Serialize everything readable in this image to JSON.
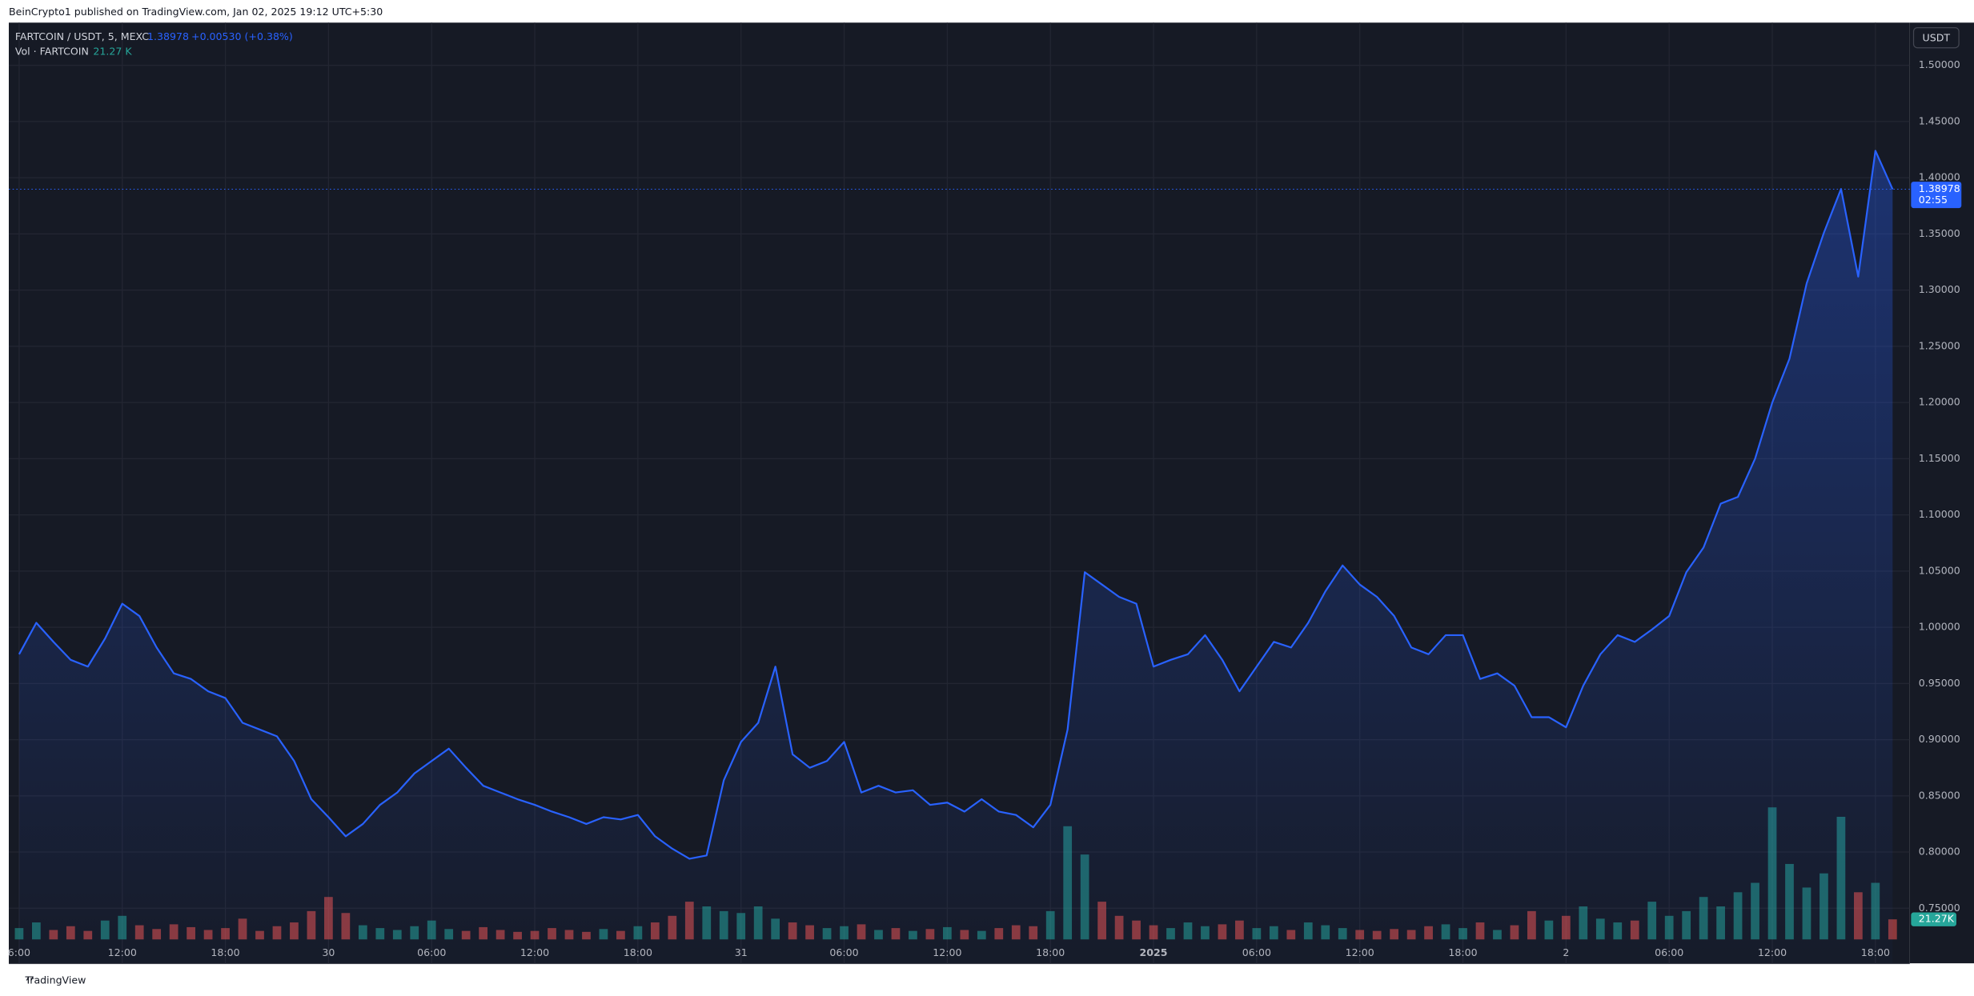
{
  "header": {
    "publisher": "BeinCrypto1 published on TradingView.com, Jan 02, 2025 19:12 UTC+5:30"
  },
  "footer": {
    "brand": "TradingView"
  },
  "chart_data": {
    "type": "line",
    "legend": {
      "symbol": "FARTCOIN / USDT, 5, MEXC",
      "last": "1.38978",
      "change": "+0.00530 (+0.38%)",
      "volume_name": "Vol · FARTCOIN",
      "volume_last": "21.27 K"
    },
    "y_axis_label": "USDT",
    "price_badge": {
      "value": "1.38978",
      "countdown": "02:55"
    },
    "xlim": [
      5.4,
      116
    ],
    "xticks": [
      {
        "value": 6,
        "label": "6:00"
      },
      {
        "value": 12,
        "label": "12:00"
      },
      {
        "value": 18,
        "label": "18:00"
      },
      {
        "value": 24,
        "label": "30"
      },
      {
        "value": 30,
        "label": "06:00"
      },
      {
        "value": 36,
        "label": "12:00"
      },
      {
        "value": 42,
        "label": "18:00"
      },
      {
        "value": 48,
        "label": "31"
      },
      {
        "value": 54,
        "label": "06:00"
      },
      {
        "value": 60,
        "label": "12:00"
      },
      {
        "value": 66,
        "label": "18:00"
      },
      {
        "value": 72,
        "label": "2025"
      },
      {
        "value": 78,
        "label": "06:00"
      },
      {
        "value": 84,
        "label": "12:00"
      },
      {
        "value": 90,
        "label": "18:00"
      },
      {
        "value": 96,
        "label": "2"
      },
      {
        "value": 102,
        "label": "06:00"
      },
      {
        "value": 108,
        "label": "12:00"
      },
      {
        "value": 114,
        "label": "18:00"
      }
    ],
    "ylim": [
      0.701,
      1.538
    ],
    "yticks": [
      {
        "value": 0.75,
        "label": "0.75000"
      },
      {
        "value": 0.8,
        "label": "0.80000"
      },
      {
        "value": 0.85,
        "label": "0.85000"
      },
      {
        "value": 0.9,
        "label": "0.90000"
      },
      {
        "value": 0.95,
        "label": "0.95000"
      },
      {
        "value": 1.0,
        "label": "1.00000"
      },
      {
        "value": 1.05,
        "label": "1.05000"
      },
      {
        "value": 1.1,
        "label": "1.10000"
      },
      {
        "value": 1.15,
        "label": "1.15000"
      },
      {
        "value": 1.2,
        "label": "1.20000"
      },
      {
        "value": 1.25,
        "label": "1.25000"
      },
      {
        "value": 1.3,
        "label": "1.30000"
      },
      {
        "value": 1.35,
        "label": "1.35000"
      },
      {
        "value": 1.4,
        "label": "1.40000"
      },
      {
        "value": 1.45,
        "label": "1.45000"
      },
      {
        "value": 1.5,
        "label": "1.50000"
      }
    ],
    "grid": true,
    "x": [
      6,
      7,
      8,
      9,
      10,
      11,
      12,
      13,
      14,
      15,
      16,
      17,
      18,
      19,
      20,
      21,
      22,
      23,
      24,
      25,
      26,
      27,
      28,
      29,
      30,
      31,
      32,
      33,
      34,
      35,
      36,
      37,
      38,
      39,
      40,
      41,
      42,
      43,
      44,
      45,
      46,
      47,
      48,
      49,
      50,
      51,
      52,
      53,
      54,
      55,
      56,
      57,
      58,
      59,
      60,
      61,
      62,
      63,
      64,
      65,
      66,
      67,
      68,
      69,
      70,
      71,
      72,
      73,
      74,
      75,
      76,
      77,
      78,
      79,
      80,
      81,
      82,
      83,
      84,
      85,
      86,
      87,
      88,
      89,
      90,
      91,
      92,
      93,
      94,
      95,
      96,
      97,
      98,
      99,
      100,
      101,
      102,
      103,
      104,
      105,
      106,
      107,
      108,
      109,
      110,
      111,
      112,
      113,
      114,
      115
    ],
    "series": [
      {
        "name": "FARTCOIN / USDT",
        "color": "#2962ff",
        "values": [
          0.976,
          1.004,
          0.987,
          0.971,
          0.965,
          0.99,
          1.021,
          1.01,
          0.982,
          0.959,
          0.954,
          0.943,
          0.937,
          0.915,
          0.909,
          0.903,
          0.881,
          0.847,
          0.831,
          0.814,
          0.825,
          0.842,
          0.853,
          0.87,
          0.881,
          0.892,
          0.875,
          0.859,
          0.853,
          0.847,
          0.842,
          0.836,
          0.831,
          0.825,
          0.831,
          0.829,
          0.833,
          0.814,
          0.803,
          0.794,
          0.797,
          0.864,
          0.898,
          0.915,
          0.965,
          0.887,
          0.875,
          0.881,
          0.898,
          0.853,
          0.859,
          0.853,
          0.855,
          0.842,
          0.844,
          0.836,
          0.847,
          0.836,
          0.833,
          0.822,
          0.842,
          0.909,
          1.049,
          1.038,
          1.027,
          1.021,
          0.965,
          0.971,
          0.976,
          0.993,
          0.971,
          0.943,
          0.965,
          0.987,
          0.982,
          1.004,
          1.032,
          1.055,
          1.038,
          1.027,
          1.01,
          0.982,
          0.976,
          0.993,
          0.993,
          0.954,
          0.959,
          0.948,
          0.92,
          0.92,
          0.911,
          0.948,
          0.976,
          0.993,
          0.987,
          0.998,
          1.01,
          1.049,
          1.071,
          1.11,
          1.116,
          1.15,
          1.2,
          1.239,
          1.306,
          1.351,
          1.39,
          1.312,
          1.424,
          1.38978
        ]
      },
      {
        "name": "Vol · FARTCOIN",
        "up_color": "#26a69a",
        "down_color": "#ef5350",
        "values": [
          12,
          18,
          10,
          14,
          9,
          20,
          25,
          15,
          11,
          16,
          13,
          10,
          12,
          22,
          9,
          14,
          18,
          30,
          45,
          28,
          15,
          12,
          10,
          14,
          20,
          11,
          9,
          13,
          10,
          8,
          9,
          12,
          10,
          8,
          11,
          9,
          14,
          18,
          25,
          40,
          35,
          30,
          28,
          35,
          22,
          18,
          15,
          12,
          14,
          16,
          10,
          12,
          9,
          11,
          13,
          10,
          9,
          12,
          15,
          14,
          30,
          120,
          90,
          40,
          25,
          20,
          15,
          12,
          18,
          14,
          16,
          20,
          12,
          14,
          10,
          18,
          15,
          12,
          10,
          9,
          11,
          10,
          14,
          16,
          12,
          18,
          10,
          15,
          30,
          20,
          25,
          35,
          22,
          18,
          20,
          40,
          25,
          30,
          45,
          35,
          50,
          60,
          140,
          80,
          55,
          70,
          130,
          50,
          60,
          21.27
        ],
        "value_labels": {
          "109": "21.27K"
        }
      }
    ]
  }
}
